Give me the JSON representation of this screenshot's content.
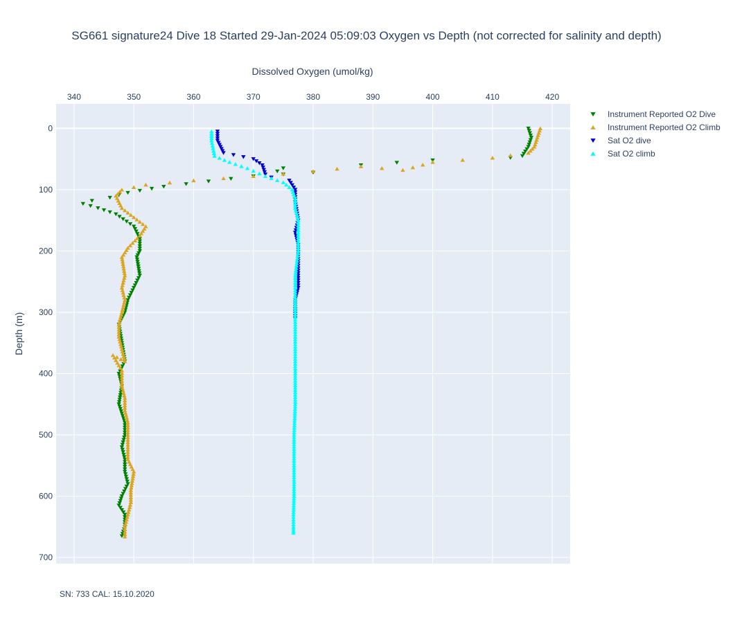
{
  "chart_data": {
    "type": "scatter",
    "title": "SG661 signature24 Dive 18 Started 29-Jan-2024 05:09:03  Oxygen vs Depth (not corrected for salinity and depth)",
    "xlabel": "Dissolved Oxygen (umol/kg)",
    "ylabel": "Depth (m)",
    "x_axis_position": "top",
    "y_axis_reversed": true,
    "xlim": [
      337,
      423
    ],
    "ylim": [
      710,
      -40
    ],
    "xticks": [
      340,
      350,
      360,
      370,
      380,
      390,
      400,
      410,
      420
    ],
    "yticks": [
      0,
      100,
      200,
      300,
      400,
      500,
      600,
      700
    ],
    "grid": true,
    "legend_position": "top-right",
    "series": [
      {
        "name": "Instrument Reported O2 Dive",
        "marker": "triangle-down",
        "color": "#008000",
        "x": [
          416,
          416.5,
          416,
          415,
          413,
          400,
          388,
          375,
          374,
          380,
          370,
          355,
          349,
          346,
          343,
          341.5,
          344,
          347,
          350,
          351,
          351,
          350.5,
          351,
          350,
          349,
          348.5,
          347.5,
          348,
          348.5,
          347.5,
          348,
          347.5,
          348.5,
          348.5,
          348,
          348.5,
          348.5,
          349,
          348,
          347.5,
          348.5,
          348.5,
          348
        ],
        "y": [
          0,
          15,
          30,
          45,
          48,
          52,
          60,
          65,
          70,
          72,
          78,
          95,
          105,
          113,
          118,
          123,
          130,
          140,
          160,
          180,
          200,
          210,
          240,
          260,
          280,
          300,
          320,
          350,
          380,
          400,
          420,
          450,
          480,
          500,
          520,
          540,
          560,
          580,
          600,
          615,
          630,
          650,
          665
        ]
      },
      {
        "name": "Instrument Reported O2 Climb",
        "marker": "triangle-up",
        "color": "#daa520",
        "x": [
          418,
          417.5,
          417,
          416,
          410,
          400,
          395,
          388,
          380,
          370,
          360,
          352,
          348,
          347,
          348,
          350,
          352,
          351,
          349,
          348,
          348.5,
          348,
          348.5,
          348,
          347.5,
          347.5,
          348,
          348.5,
          346.5,
          348,
          348,
          348.5,
          348.5,
          349,
          349,
          349,
          349,
          350,
          349.5,
          349.5,
          349,
          348.5,
          348.5
        ],
        "y": [
          0,
          15,
          30,
          40,
          48,
          55,
          68,
          62,
          70,
          78,
          85,
          92,
          100,
          110,
          130,
          145,
          160,
          175,
          195,
          210,
          240,
          260,
          280,
          300,
          320,
          340,
          360,
          380,
          370,
          395,
          420,
          440,
          460,
          480,
          500,
          520,
          540,
          560,
          590,
          610,
          630,
          650,
          666
        ]
      },
      {
        "name": "Sat O2 dive",
        "marker": "triangle-down",
        "color": "#0000cd",
        "x": [
          364,
          364,
          364.5,
          365,
          370,
          371.5,
          372,
          373,
          376,
          377,
          377,
          377.5,
          377,
          377.5,
          377.5,
          377.5,
          377,
          377
        ],
        "y": [
          5,
          20,
          30,
          40,
          50,
          60,
          75,
          80,
          85,
          100,
          120,
          150,
          170,
          190,
          220,
          260,
          280,
          310
        ]
      },
      {
        "name": "Sat O2 climb",
        "marker": "triangle-up",
        "color": "#00ffff",
        "x": [
          363,
          363,
          363.5,
          366,
          369,
          372,
          375,
          376.5,
          377,
          377,
          377.5,
          377.5,
          377.5,
          377,
          377,
          377,
          377,
          377,
          377,
          376.8,
          376.8,
          376.8,
          376.7,
          376.7,
          376.7
        ],
        "y": [
          5,
          20,
          45,
          55,
          65,
          78,
          88,
          100,
          115,
          130,
          150,
          170,
          200,
          240,
          280,
          320,
          360,
          400,
          450,
          500,
          550,
          600,
          630,
          650,
          660
        ]
      }
    ],
    "footnote": "SN: 733  CAL: 15.10.2020"
  }
}
